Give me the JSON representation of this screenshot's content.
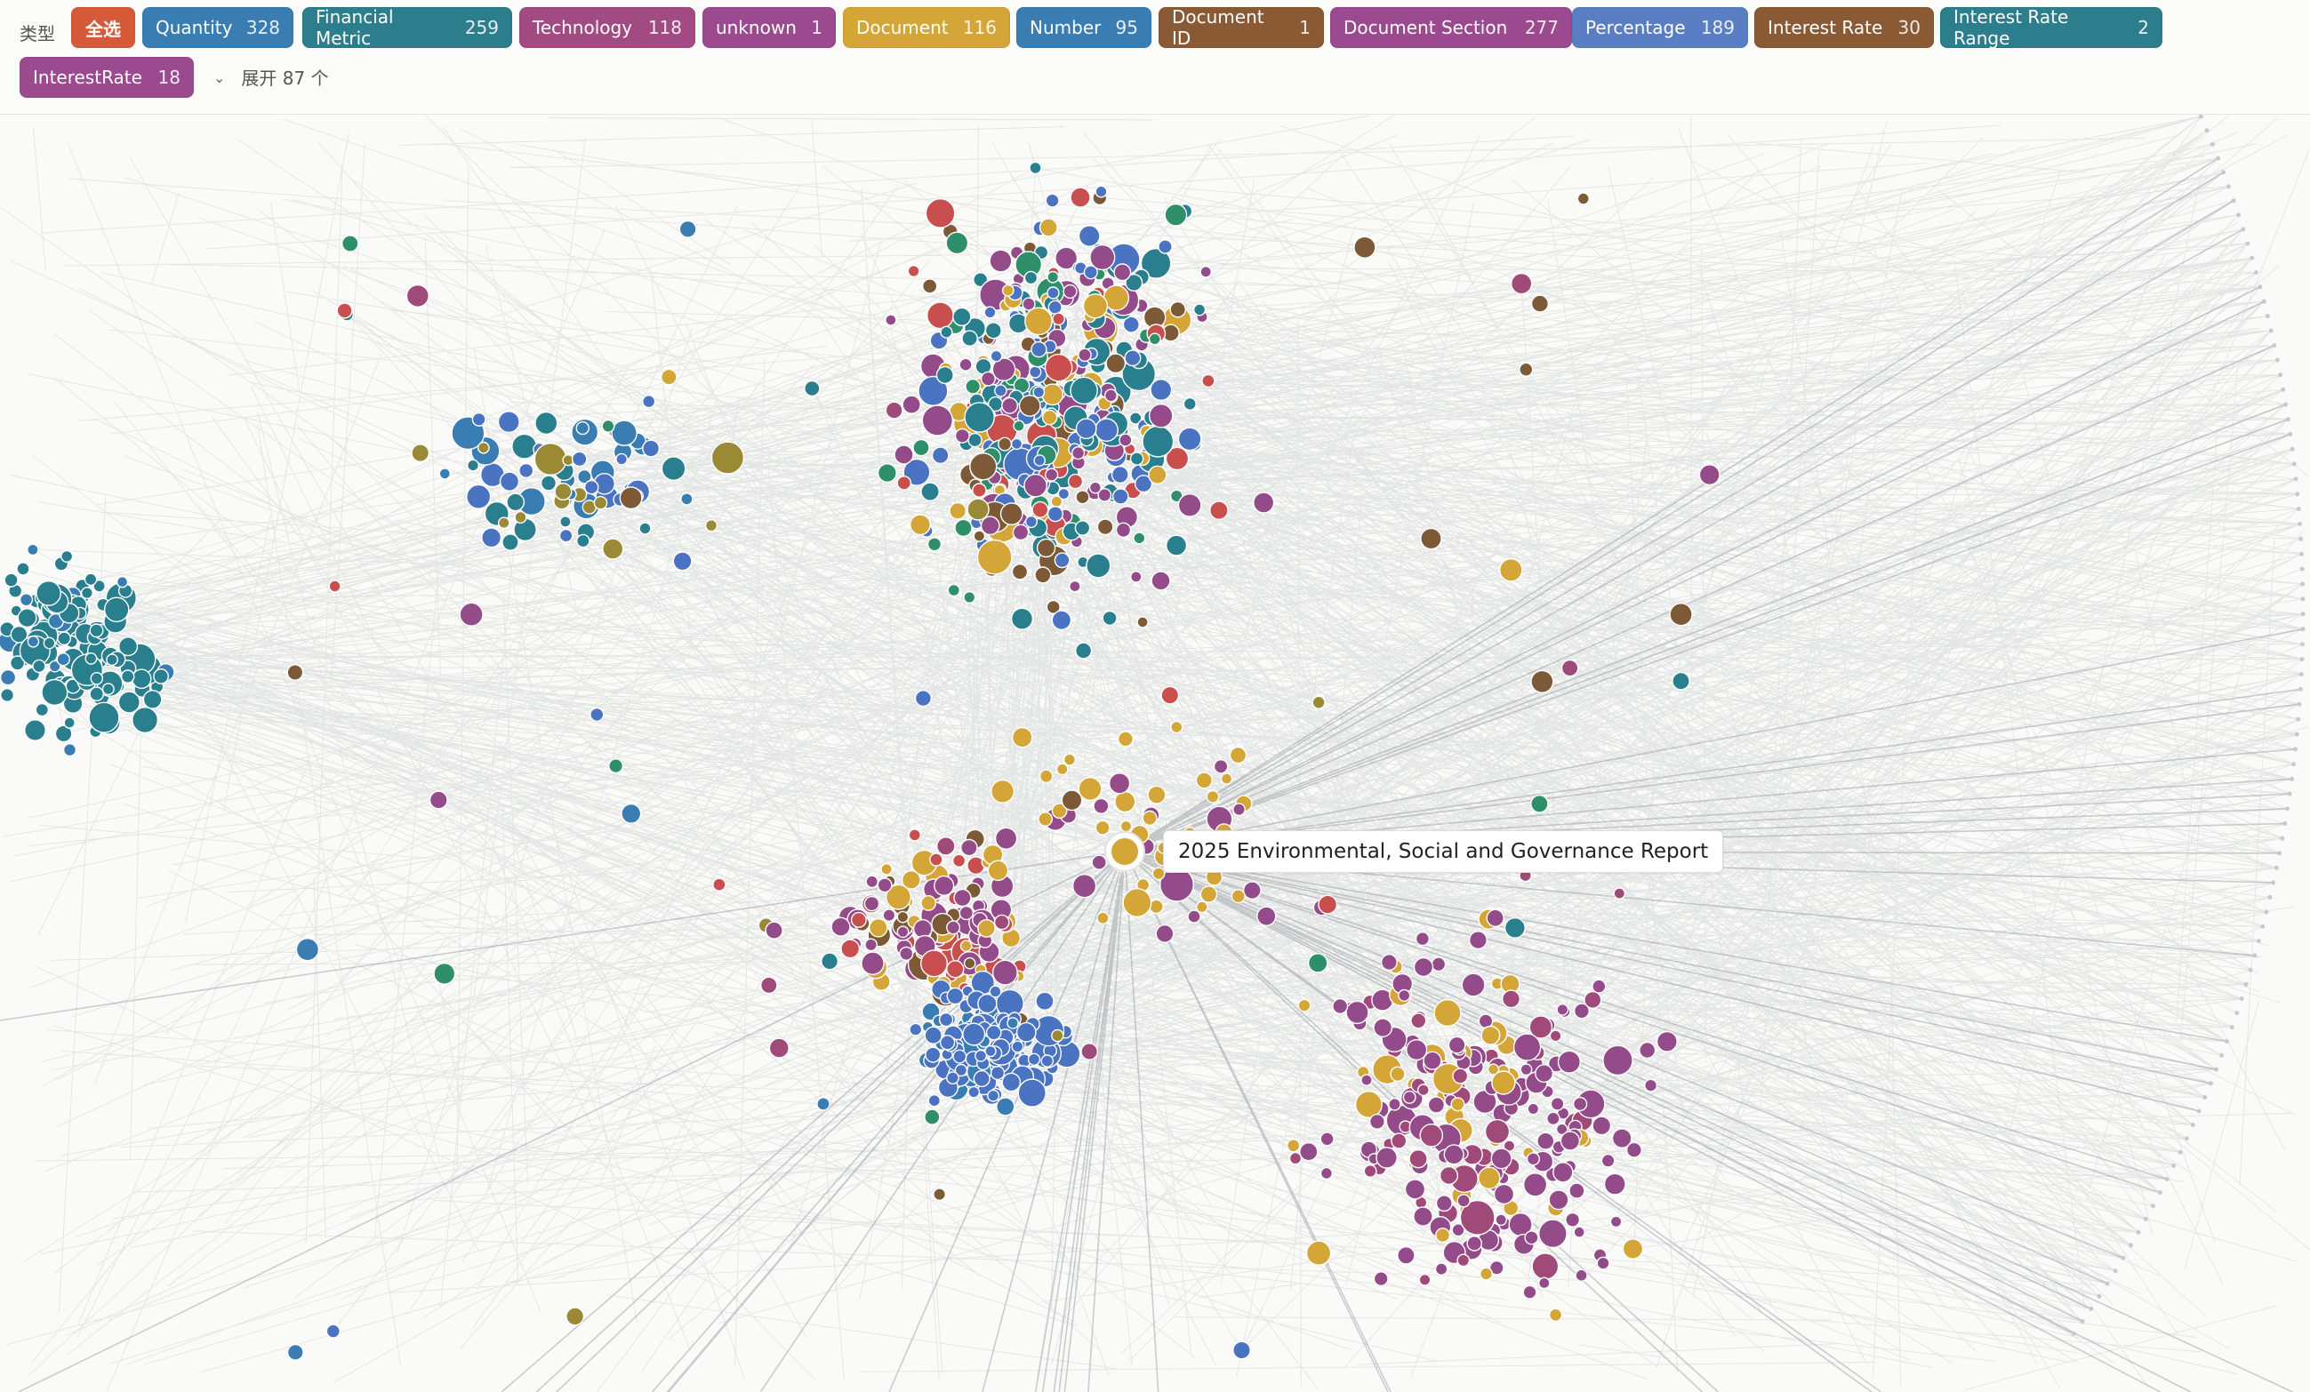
{
  "filter_bar": {
    "label": "类型",
    "all_label": "全选",
    "expand_label": "展开 87 个",
    "types": [
      {
        "name": "Quantity",
        "count": "328",
        "color": "#3a7db3"
      },
      {
        "name": "Financial Metric",
        "count": "259",
        "color": "#2c7e8c"
      },
      {
        "name": "Technology",
        "count": "118",
        "color": "#a24a82"
      },
      {
        "name": "unknown",
        "count": "1",
        "color": "#9b4a8f"
      },
      {
        "name": "Document",
        "count": "116",
        "color": "#d4a537"
      },
      {
        "name": "Number",
        "count": "95",
        "color": "#3a7db3"
      },
      {
        "name": "Document ID",
        "count": "1",
        "color": "#8a5a35"
      },
      {
        "name": "Document Section",
        "count": "277",
        "color": "#9b4a8f"
      },
      {
        "name": "Percentage",
        "count": "189",
        "color": "#5a7ec4"
      },
      {
        "name": "Interest Rate",
        "count": "30",
        "color": "#8a5a35"
      },
      {
        "name": "Interest Rate Range",
        "count": "2",
        "color": "#2c7e8c"
      },
      {
        "name": "InterestRate",
        "count": "18",
        "color": "#9b4a8f"
      }
    ]
  },
  "all_chip_color": "#d65a3a",
  "tooltip": {
    "text": "2025 Environmental, Social and Governance Report"
  },
  "node_palette": [
    "#2a7f8f",
    "#4a74c1",
    "#944b8a",
    "#d4a537",
    "#7d5a37",
    "#2f8f6a",
    "#c94f4f",
    "#3a7db3",
    "#9a8a35",
    "#a04a7a"
  ]
}
